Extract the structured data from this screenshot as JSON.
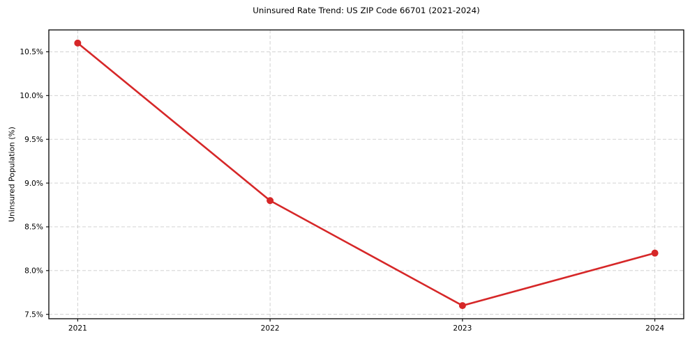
{
  "title": "Uninsured Rate Trend: US ZIP Code 66701 (2021-2024)",
  "chart_data": {
    "type": "line",
    "title": "Uninsured Rate Trend: US ZIP Code 66701 (2021-2024)",
    "xlabel": "",
    "ylabel": "Uninsured Population (%)",
    "x": [
      2021,
      2022,
      2023,
      2024
    ],
    "series": [
      {
        "name": "Uninsured Population (%)",
        "values": [
          10.6,
          8.8,
          7.6,
          8.2
        ],
        "color": "#d62728",
        "marker": "circle"
      }
    ],
    "xticks": {
      "values": [
        2021,
        2022,
        2023,
        2024
      ],
      "labels": [
        "2021",
        "2022",
        "2023",
        "2024"
      ]
    },
    "yticks": {
      "values": [
        7.5,
        8.0,
        8.5,
        9.0,
        9.5,
        10.0,
        10.5
      ],
      "labels": [
        "7.5%",
        "8.0%",
        "8.5%",
        "9.0%",
        "9.5%",
        "10.0%",
        "10.5%"
      ]
    },
    "xlim": [
      2020.85,
      2024.15
    ],
    "ylim": [
      7.45,
      10.75
    ],
    "grid": true,
    "grid_style": "dashed",
    "legend": "none"
  },
  "colors": {
    "line": "#d62728",
    "marker": "#d62728",
    "grid": "#cccccc",
    "axis": "#000000",
    "background": "#ffffff",
    "text": "#000000"
  }
}
